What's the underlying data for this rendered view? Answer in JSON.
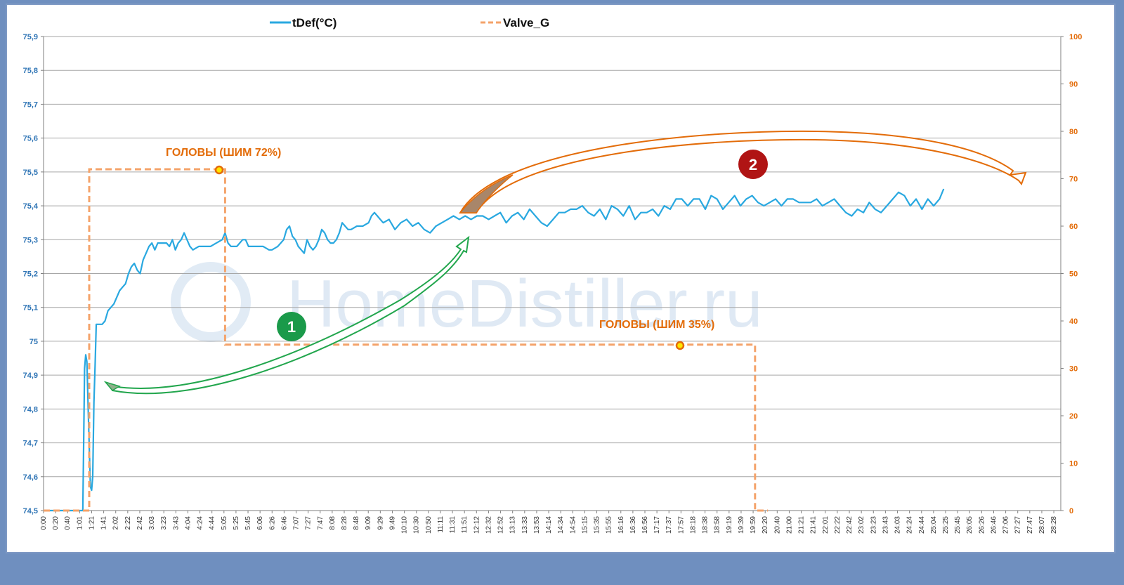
{
  "chart_data": {
    "type": "line",
    "legend": [
      {
        "name": "tDef(°C)",
        "color": "#29a8e0",
        "style": "solid"
      },
      {
        "name": "Valve_G",
        "color": "#f4a36a",
        "style": "dashed"
      }
    ],
    "y_left": {
      "min": 74.5,
      "max": 75.9,
      "ticks": [
        "74,5",
        "74,6",
        "74,7",
        "74,8",
        "74,9",
        "75",
        "75,1",
        "75,2",
        "75,3",
        "75,4",
        "75,5",
        "75,6",
        "75,7",
        "75,8",
        "75,9"
      ]
    },
    "y_right": {
      "min": 0,
      "max": 100,
      "ticks": [
        "0",
        "10",
        "20",
        "30",
        "40",
        "50",
        "60",
        "70",
        "80",
        "90",
        "100"
      ]
    },
    "x_max_seconds": 1737,
    "x_ticks": [
      "0:00",
      "0:20",
      "0:40",
      "1:01",
      "1:21",
      "1:41",
      "2:02",
      "2:22",
      "2:42",
      "3:03",
      "3:23",
      "3:43",
      "4:04",
      "4:24",
      "4:44",
      "5:05",
      "5:25",
      "5:45",
      "6:06",
      "6:26",
      "6:46",
      "7:07",
      "7:27",
      "7:47",
      "8:08",
      "8:28",
      "8:48",
      "9:09",
      "9:29",
      "9:49",
      "10:10",
      "10:30",
      "10:50",
      "11:11",
      "11:31",
      "11:51",
      "12:12",
      "12:32",
      "12:52",
      "13:13",
      "13:33",
      "13:53",
      "14:14",
      "14:34",
      "14:54",
      "15:15",
      "15:35",
      "15:55",
      "16:16",
      "16:36",
      "16:56",
      "17:17",
      "17:37",
      "17:57",
      "18:18",
      "18:38",
      "18:58",
      "19:19",
      "19:39",
      "19:59",
      "20:20",
      "20:40",
      "21:00",
      "21:21",
      "21:41",
      "22:01",
      "22:22",
      "22:42",
      "23:02",
      "23:23",
      "23:43",
      "24:03",
      "24:24",
      "24:44",
      "25:04",
      "25:25",
      "25:45",
      "26:05",
      "26:26",
      "26:46",
      "27:06",
      "27:27",
      "27:47",
      "28:07",
      "28:28"
    ],
    "series": [
      {
        "name": "tDef(°C)",
        "axis": "left",
        "points": [
          [
            0,
            74.5
          ],
          [
            60,
            74.5
          ],
          [
            67,
            74.5
          ],
          [
            70,
            74.92
          ],
          [
            72,
            74.96
          ],
          [
            74,
            74.94
          ],
          [
            77,
            74.75
          ],
          [
            80,
            74.57
          ],
          [
            82,
            74.56
          ],
          [
            84,
            74.6
          ],
          [
            86,
            74.82
          ],
          [
            88,
            74.93
          ],
          [
            90,
            75.05
          ],
          [
            95,
            75.05
          ],
          [
            100,
            75.05
          ],
          [
            105,
            75.06
          ],
          [
            110,
            75.09
          ],
          [
            115,
            75.1
          ],
          [
            120,
            75.11
          ],
          [
            125,
            75.13
          ],
          [
            130,
            75.15
          ],
          [
            135,
            75.16
          ],
          [
            140,
            75.17
          ],
          [
            145,
            75.2
          ],
          [
            150,
            75.22
          ],
          [
            155,
            75.23
          ],
          [
            160,
            75.21
          ],
          [
            165,
            75.2
          ],
          [
            170,
            75.24
          ],
          [
            175,
            75.26
          ],
          [
            180,
            75.28
          ],
          [
            185,
            75.29
          ],
          [
            190,
            75.27
          ],
          [
            195,
            75.29
          ],
          [
            200,
            75.29
          ],
          [
            210,
            75.29
          ],
          [
            215,
            75.28
          ],
          [
            220,
            75.3
          ],
          [
            225,
            75.27
          ],
          [
            230,
            75.29
          ],
          [
            235,
            75.3
          ],
          [
            240,
            75.32
          ],
          [
            245,
            75.3
          ],
          [
            250,
            75.28
          ],
          [
            255,
            75.27
          ],
          [
            265,
            75.28
          ],
          [
            275,
            75.28
          ],
          [
            285,
            75.28
          ],
          [
            295,
            75.29
          ],
          [
            305,
            75.3
          ],
          [
            310,
            75.32
          ],
          [
            315,
            75.29
          ],
          [
            320,
            75.28
          ],
          [
            330,
            75.28
          ],
          [
            340,
            75.3
          ],
          [
            345,
            75.3
          ],
          [
            350,
            75.28
          ],
          [
            355,
            75.28
          ],
          [
            365,
            75.28
          ],
          [
            375,
            75.28
          ],
          [
            385,
            75.27
          ],
          [
            390,
            75.27
          ],
          [
            400,
            75.28
          ],
          [
            410,
            75.3
          ],
          [
            415,
            75.33
          ],
          [
            420,
            75.34
          ],
          [
            425,
            75.31
          ],
          [
            430,
            75.3
          ],
          [
            435,
            75.28
          ],
          [
            440,
            75.27
          ],
          [
            445,
            75.26
          ],
          [
            450,
            75.3
          ],
          [
            455,
            75.28
          ],
          [
            460,
            75.27
          ],
          [
            465,
            75.28
          ],
          [
            470,
            75.3
          ],
          [
            475,
            75.33
          ],
          [
            480,
            75.32
          ],
          [
            485,
            75.3
          ],
          [
            490,
            75.29
          ],
          [
            495,
            75.29
          ],
          [
            500,
            75.3
          ],
          [
            505,
            75.32
          ],
          [
            510,
            75.35
          ],
          [
            515,
            75.34
          ],
          [
            520,
            75.33
          ],
          [
            525,
            75.33
          ],
          [
            535,
            75.34
          ],
          [
            545,
            75.34
          ],
          [
            555,
            75.35
          ],
          [
            560,
            75.37
          ],
          [
            565,
            75.38
          ],
          [
            570,
            75.37
          ],
          [
            575,
            75.36
          ],
          [
            580,
            75.35
          ],
          [
            590,
            75.36
          ],
          [
            600,
            75.33
          ],
          [
            610,
            75.35
          ],
          [
            620,
            75.36
          ],
          [
            630,
            75.34
          ],
          [
            640,
            75.35
          ],
          [
            650,
            75.33
          ],
          [
            660,
            75.32
          ],
          [
            670,
            75.34
          ],
          [
            680,
            75.35
          ],
          [
            690,
            75.36
          ],
          [
            700,
            75.37
          ],
          [
            710,
            75.36
          ],
          [
            720,
            75.37
          ],
          [
            730,
            75.36
          ],
          [
            740,
            75.37
          ],
          [
            750,
            75.37
          ],
          [
            760,
            75.36
          ],
          [
            770,
            75.37
          ],
          [
            780,
            75.38
          ],
          [
            790,
            75.35
          ],
          [
            800,
            75.37
          ],
          [
            810,
            75.38
          ],
          [
            820,
            75.36
          ],
          [
            830,
            75.39
          ],
          [
            840,
            75.37
          ],
          [
            850,
            75.35
          ],
          [
            860,
            75.34
          ],
          [
            870,
            75.36
          ],
          [
            880,
            75.38
          ],
          [
            890,
            75.38
          ],
          [
            900,
            75.39
          ],
          [
            910,
            75.39
          ],
          [
            920,
            75.4
          ],
          [
            930,
            75.38
          ],
          [
            940,
            75.37
          ],
          [
            950,
            75.39
          ],
          [
            960,
            75.36
          ],
          [
            970,
            75.4
          ],
          [
            980,
            75.39
          ],
          [
            990,
            75.37
          ],
          [
            1000,
            75.4
          ],
          [
            1010,
            75.36
          ],
          [
            1020,
            75.38
          ],
          [
            1030,
            75.38
          ],
          [
            1040,
            75.39
          ],
          [
            1050,
            75.37
          ],
          [
            1060,
            75.4
          ],
          [
            1070,
            75.39
          ],
          [
            1080,
            75.42
          ],
          [
            1090,
            75.42
          ],
          [
            1100,
            75.4
          ],
          [
            1110,
            75.42
          ],
          [
            1120,
            75.42
          ],
          [
            1130,
            75.39
          ],
          [
            1140,
            75.43
          ],
          [
            1150,
            75.42
          ],
          [
            1160,
            75.39
          ],
          [
            1170,
            75.41
          ],
          [
            1180,
            75.43
          ],
          [
            1190,
            75.4
          ],
          [
            1200,
            75.42
          ],
          [
            1210,
            75.43
          ],
          [
            1220,
            75.41
          ],
          [
            1230,
            75.4
          ],
          [
            1240,
            75.41
          ],
          [
            1250,
            75.42
          ],
          [
            1260,
            75.4
          ],
          [
            1270,
            75.42
          ],
          [
            1280,
            75.42
          ],
          [
            1290,
            75.41
          ],
          [
            1300,
            75.41
          ],
          [
            1310,
            75.41
          ],
          [
            1320,
            75.42
          ],
          [
            1330,
            75.4
          ],
          [
            1340,
            75.41
          ],
          [
            1350,
            75.42
          ],
          [
            1360,
            75.4
          ],
          [
            1370,
            75.38
          ],
          [
            1380,
            75.37
          ],
          [
            1390,
            75.39
          ],
          [
            1400,
            75.38
          ],
          [
            1410,
            75.41
          ],
          [
            1420,
            75.39
          ],
          [
            1430,
            75.38
          ],
          [
            1440,
            75.4
          ],
          [
            1450,
            75.42
          ],
          [
            1460,
            75.44
          ],
          [
            1470,
            75.43
          ],
          [
            1480,
            75.4
          ],
          [
            1490,
            75.42
          ],
          [
            1500,
            75.39
          ],
          [
            1510,
            75.42
          ],
          [
            1520,
            75.4
          ],
          [
            1530,
            75.42
          ],
          [
            1537,
            75.45
          ]
        ]
      },
      {
        "name": "Valve_G",
        "axis": "right",
        "points": [
          [
            0,
            0
          ],
          [
            75,
            0
          ],
          [
            78,
            0
          ],
          [
            78,
            72
          ],
          [
            310,
            72
          ],
          [
            310,
            35
          ],
          [
            715,
            35
          ],
          [
            1215,
            35
          ],
          [
            1215,
            0
          ],
          [
            1237,
            0
          ]
        ]
      }
    ],
    "annotations": [
      {
        "text": "ГОЛОВЫ (ШИМ 72%)"
      },
      {
        "text": "ГОЛОВЫ (ШИМ 35%)"
      }
    ],
    "badges": [
      {
        "text": "1",
        "color": "#1a9a4a"
      },
      {
        "text": "2",
        "color": "#b01414"
      }
    ],
    "watermark": "HomeDistiller.ru",
    "grid": "horizontal"
  }
}
